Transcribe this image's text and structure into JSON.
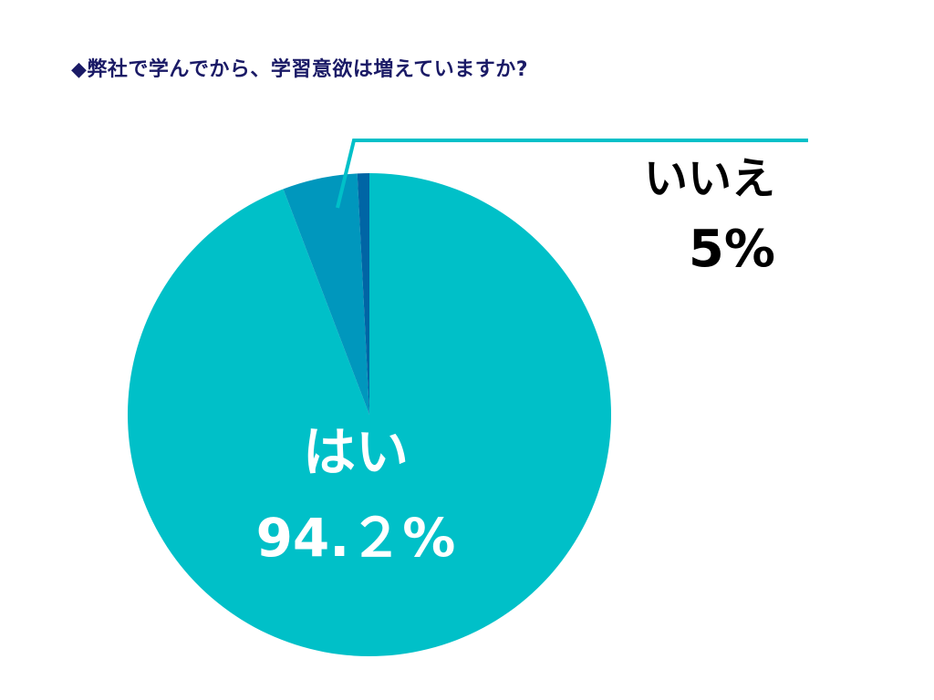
{
  "chart_data": {
    "type": "pie",
    "title": "◆弊社で学んでから、学習意欲は増えていますか?",
    "slices": [
      {
        "label": "はい",
        "value_label": "94.２%",
        "value": 94.2,
        "color": "#00c0c8",
        "label_color": "#ffffff"
      },
      {
        "label": "いいえ",
        "value_label": "5%",
        "value": 5,
        "color": "#0097bd",
        "label_color": "#000000"
      },
      {
        "label": "",
        "value_label": "",
        "value": 0.8,
        "color": "#0065a5",
        "label_color": "#000000"
      }
    ],
    "leader_line_color": "#00c0c8",
    "start_angle": "12 o'clock",
    "direction": "clockwise"
  }
}
